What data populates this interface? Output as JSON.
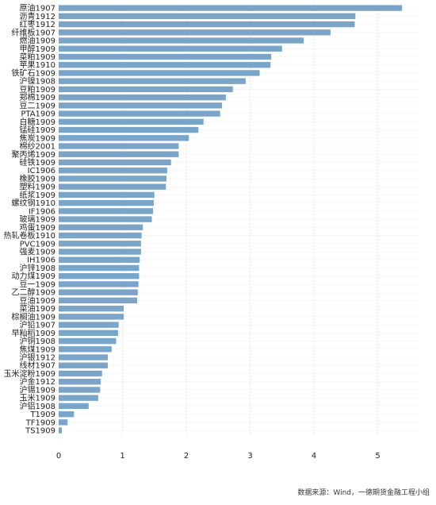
{
  "chart_data": {
    "type": "bar",
    "orientation": "horizontal",
    "categories": [
      "原油1907",
      "沥青1912",
      "红枣1912",
      "纤维板1907",
      "燃油1909",
      "甲醇1909",
      "菜粕1909",
      "苹果1910",
      "铁矿石1909",
      "沪镍1908",
      "豆粕1909",
      "郑棉1909",
      "豆二1909",
      "PTA1909",
      "白糖1909",
      "锰硅1909",
      "焦炭1909",
      "棉纱2001",
      "聚丙烯1909",
      "硅铁1909",
      "IC1906",
      "橡胶1909",
      "塑料1909",
      "纸浆1909",
      "螺纹钢1910",
      "IF1906",
      "玻璃1909",
      "鸡蛋1909",
      "热轧卷板1910",
      "PVC1909",
      "强麦1909",
      "IH1906",
      "沪锌1908",
      "动力煤1909",
      "豆一1909",
      "乙二醇1909",
      "豆油1909",
      "菜油1909",
      "棕榈油1909",
      "沪铅1907",
      "早籼稻1909",
      "沪铜1908",
      "焦煤1909",
      "沪银1912",
      "线材1907",
      "玉米淀粉1909",
      "沪金1912",
      "沪锡1909",
      "玉米1909",
      "沪铝1908",
      "T1909",
      "TF1909",
      "TS1909"
    ],
    "values": [
      5.38,
      4.65,
      4.64,
      4.26,
      3.84,
      3.5,
      3.33,
      3.32,
      3.15,
      2.93,
      2.73,
      2.62,
      2.56,
      2.53,
      2.27,
      2.19,
      2.04,
      1.88,
      1.88,
      1.76,
      1.7,
      1.69,
      1.68,
      1.5,
      1.49,
      1.48,
      1.46,
      1.32,
      1.3,
      1.29,
      1.29,
      1.27,
      1.26,
      1.26,
      1.25,
      1.24,
      1.23,
      1.02,
      1.02,
      0.94,
      0.93,
      0.9,
      0.83,
      0.77,
      0.77,
      0.68,
      0.66,
      0.65,
      0.62,
      0.47,
      0.24,
      0.14,
      0.05
    ],
    "xlim": [
      0,
      5.6
    ],
    "xticks": [
      "0",
      "1",
      "2",
      "3",
      "4",
      "5"
    ],
    "grid": true,
    "color": "#7aa5c9"
  },
  "source": "数据来源：Wind，一德期货金融工程小组"
}
